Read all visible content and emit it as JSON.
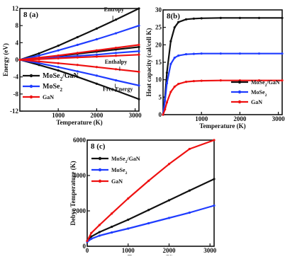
{
  "chart_data": [
    {
      "id": "a",
      "type": "line",
      "panel_label": "8 (a)",
      "xlabel": "Temperature (K)",
      "ylabel": "Energy (eV)",
      "xlim": [
        0,
        3100
      ],
      "ylim": [
        -12,
        12
      ],
      "xticks": [
        1000,
        2000,
        3000
      ],
      "xtick_labels": [
        "1000",
        "2000",
        "3000"
      ],
      "yticks": [
        -12,
        -8,
        -4,
        0,
        4,
        8,
        12
      ],
      "ytick_labels": [
        "-12",
        "-8",
        "-4",
        "0",
        "4",
        "8",
        "12"
      ],
      "annotations": [
        "Entropy",
        "Enthalpy",
        "Free Energy"
      ],
      "legend": "bottom-left",
      "x": [
        0,
        500,
        1000,
        1500,
        2000,
        2500,
        3100
      ],
      "series": [
        {
          "name": "MoSe2/GaN",
          "color": "#111111",
          "quantity": "Entropy",
          "values": [
            0,
            1.5,
            3.3,
            5.3,
            7.3,
            9.4,
            12.0
          ]
        },
        {
          "name": "MoSe2/GaN",
          "color": "#111111",
          "quantity": "Enthalpy",
          "values": [
            0,
            0.4,
            0.9,
            1.4,
            1.9,
            2.4,
            3.0
          ]
        },
        {
          "name": "MoSe2/GaN",
          "color": "#111111",
          "quantity": "Free Energy",
          "values": [
            0,
            -1.2,
            -2.5,
            -4.0,
            -5.6,
            -7.2,
            -9.2
          ]
        },
        {
          "name": "MoSe2",
          "color": "#1f3cff",
          "quantity": "Entropy",
          "values": [
            0,
            1.0,
            2.2,
            3.5,
            4.8,
            6.2,
            8.0
          ]
        },
        {
          "name": "MoSe2",
          "color": "#1f3cff",
          "quantity": "Enthalpy",
          "values": [
            0,
            0.3,
            0.6,
            0.9,
            1.2,
            1.6,
            2.0
          ]
        },
        {
          "name": "MoSe2",
          "color": "#1f3cff",
          "quantity": "Free Energy",
          "values": [
            0,
            -0.8,
            -1.7,
            -2.7,
            -3.7,
            -4.8,
            -6.0
          ]
        },
        {
          "name": "GaN",
          "color": "#ee1111",
          "quantity": "Entropy",
          "values": [
            0,
            0.5,
            1.0,
            1.6,
            2.2,
            2.8,
            3.5
          ]
        },
        {
          "name": "GaN",
          "color": "#ee1111",
          "quantity": "Enthalpy",
          "values": [
            0,
            0.15,
            0.35,
            0.55,
            0.75,
            0.95,
            1.2
          ]
        },
        {
          "name": "GaN",
          "color": "#ee1111",
          "quantity": "Free Energy",
          "values": [
            0,
            -0.4,
            -0.8,
            -1.2,
            -1.7,
            -2.2,
            -2.8
          ]
        }
      ],
      "legend_entries": [
        {
          "label": "MoSe2/GaN",
          "color": "#111111"
        },
        {
          "label": "MoSe2",
          "color": "#1f3cff"
        },
        {
          "label": "GaN",
          "color": "#ee1111"
        }
      ]
    },
    {
      "id": "b",
      "type": "line",
      "panel_label": "8(b)",
      "xlabel": "Temperature (K)",
      "ylabel": "Heat capacity (cal/cell K)",
      "xlim": [
        0,
        3100
      ],
      "ylim": [
        0,
        30
      ],
      "xticks": [
        1000,
        2000,
        3000
      ],
      "xtick_labels": [
        "1000",
        "2000",
        "3000"
      ],
      "yticks": [
        0,
        5,
        10,
        15,
        20,
        25,
        30
      ],
      "ytick_labels": [
        "0",
        "5",
        "10",
        "15",
        "20",
        "25",
        "30"
      ],
      "legend": "bottom-right",
      "x": [
        0,
        50,
        100,
        200,
        300,
        400,
        600,
        800,
        1000,
        1500,
        2000,
        2500,
        3100
      ],
      "series": [
        {
          "name": "MoSe2/GaN",
          "color": "#111111",
          "values": [
            0,
            5,
            12,
            21,
            25,
            26.5,
            27.3,
            27.5,
            27.6,
            27.7,
            27.7,
            27.7,
            27.7
          ]
        },
        {
          "name": "MoSe2",
          "color": "#1f3cff",
          "values": [
            0,
            4,
            9,
            14.5,
            16.3,
            16.9,
            17.3,
            17.4,
            17.5,
            17.5,
            17.5,
            17.5,
            17.5
          ]
        },
        {
          "name": "GaN",
          "color": "#ee1111",
          "values": [
            0,
            1.5,
            3.5,
            6.5,
            8.0,
            8.8,
            9.4,
            9.6,
            9.7,
            9.8,
            9.8,
            9.8,
            9.8
          ]
        }
      ],
      "legend_entries": [
        {
          "label": "MoSe2/GaN",
          "color": "#111111"
        },
        {
          "label": "MoSe2",
          "color": "#1f3cff"
        },
        {
          "label": "GaN",
          "color": "#ee1111"
        }
      ]
    },
    {
      "id": "c",
      "type": "line",
      "panel_label": "8 (c)",
      "xlabel": "Temperature (K)",
      "ylabel": "Debye Temperature (K)",
      "xlim": [
        0,
        3100
      ],
      "ylim": [
        0,
        6000
      ],
      "xticks": [
        0,
        1000,
        2000,
        3000
      ],
      "xtick_labels": [
        "0",
        "1000",
        "2000",
        "3000"
      ],
      "yticks": [
        0,
        2000,
        4000,
        6000
      ],
      "ytick_labels": [
        "0",
        "2000",
        "4000",
        "6000"
      ],
      "legend": "top-left",
      "x": [
        0,
        100,
        300,
        600,
        1000,
        1500,
        2000,
        2500,
        3100
      ],
      "series": [
        {
          "name": "MoSe2/GaN",
          "color": "#111111",
          "values": [
            300,
            550,
            800,
            1100,
            1500,
            2050,
            2600,
            3150,
            3800
          ]
        },
        {
          "name": "MoSe2",
          "color": "#1f3cff",
          "values": [
            250,
            420,
            600,
            780,
            1000,
            1300,
            1600,
            1900,
            2300
          ]
        },
        {
          "name": "GaN",
          "color": "#ee1111",
          "values": [
            300,
            750,
            1200,
            1850,
            2700,
            3700,
            4650,
            5500,
            6000
          ]
        }
      ],
      "legend_entries": [
        {
          "label": "MoSe2/GaN",
          "color": "#111111"
        },
        {
          "label": "MoSe2",
          "color": "#1f3cff"
        },
        {
          "label": "GaN",
          "color": "#ee1111"
        }
      ]
    }
  ]
}
